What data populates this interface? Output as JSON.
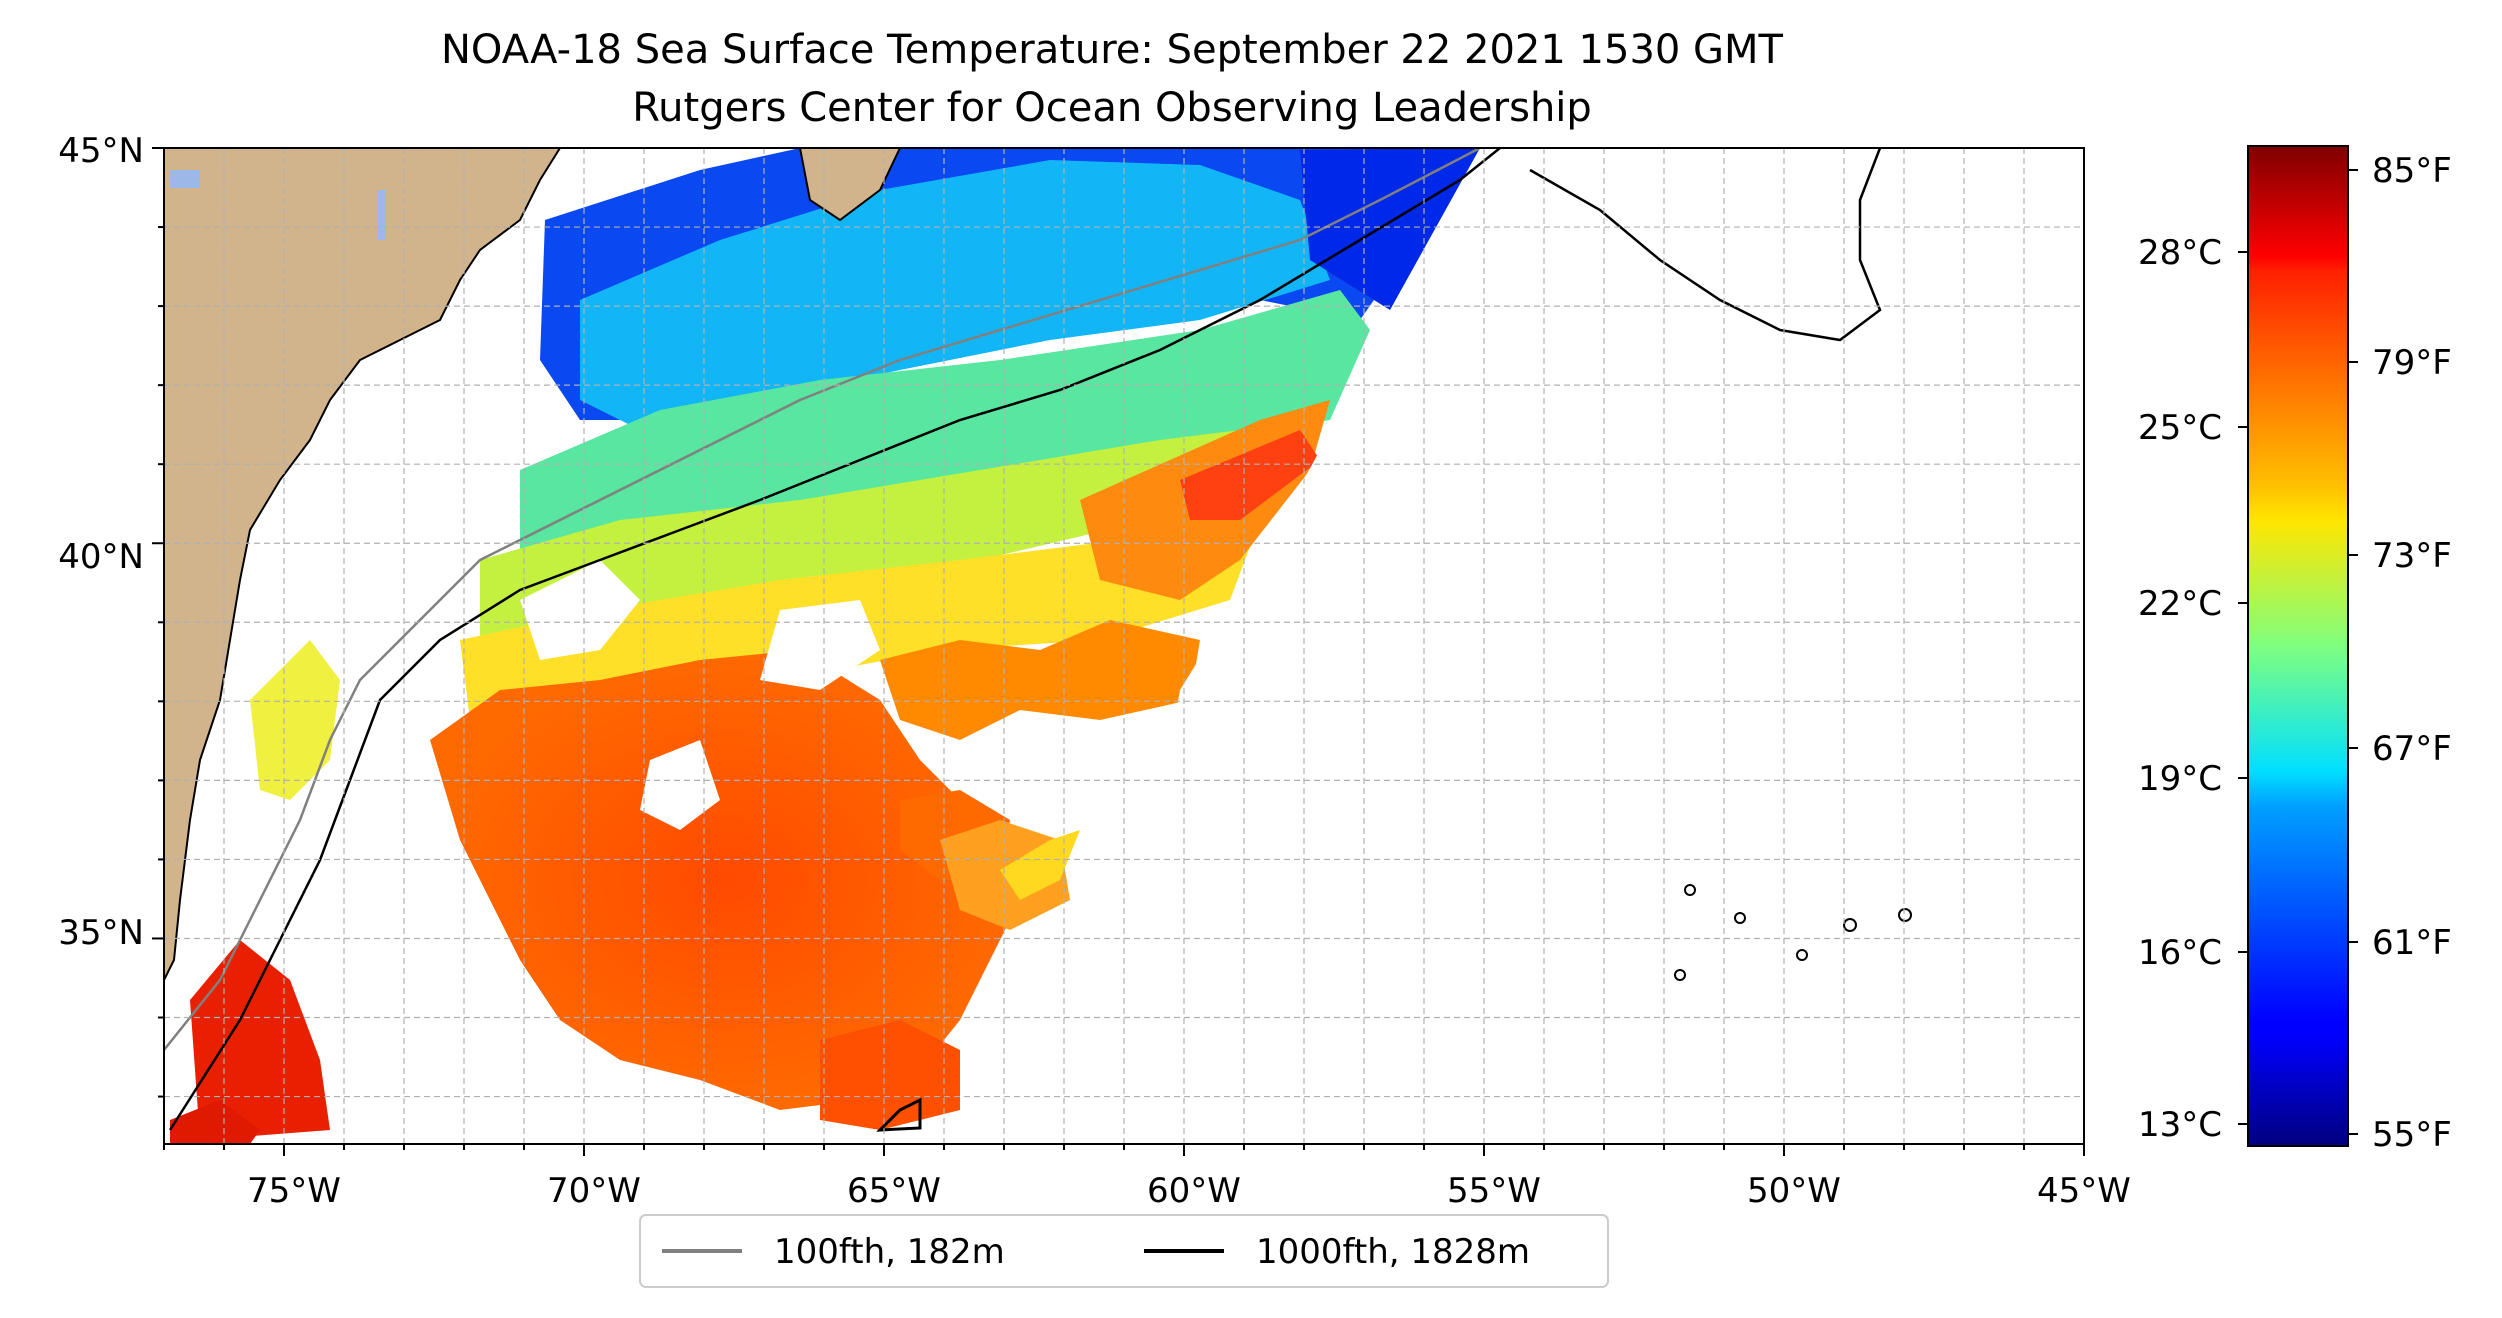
{
  "title_line1": "NOAA-18 Sea Surface Temperature: September 22 2021 1530 GMT",
  "title_line2": "Rutgers Center for Ocean Observing Leadership",
  "map": {
    "lon_range": [
      -77,
      -45
    ],
    "lat_range": [
      32.4,
      45
    ],
    "x_tick_labels": [
      "75°W",
      "70°W",
      "65°W",
      "60°W",
      "55°W",
      "50°W",
      "45°W"
    ],
    "y_tick_labels": [
      "45°N",
      "40°N",
      "35°N"
    ],
    "land_color": "#d2b48c",
    "lake_color": "#9bb8e8",
    "grid": "on, dashed"
  },
  "legend": {
    "placement": "bottom-center",
    "items": [
      {
        "label": "100fth, 182m",
        "color": "#808080"
      },
      {
        "label": "1000fth, 1828m",
        "color": "#000000"
      }
    ]
  },
  "colorbar": {
    "colormap": "jet",
    "celsius_labels": [
      "28°C",
      "25°C",
      "22°C",
      "19°C",
      "16°C",
      "13°C"
    ],
    "fahrenheit_labels": [
      "85°F",
      "79°F",
      "73°F",
      "67°F",
      "61°F",
      "55°F"
    ]
  }
}
